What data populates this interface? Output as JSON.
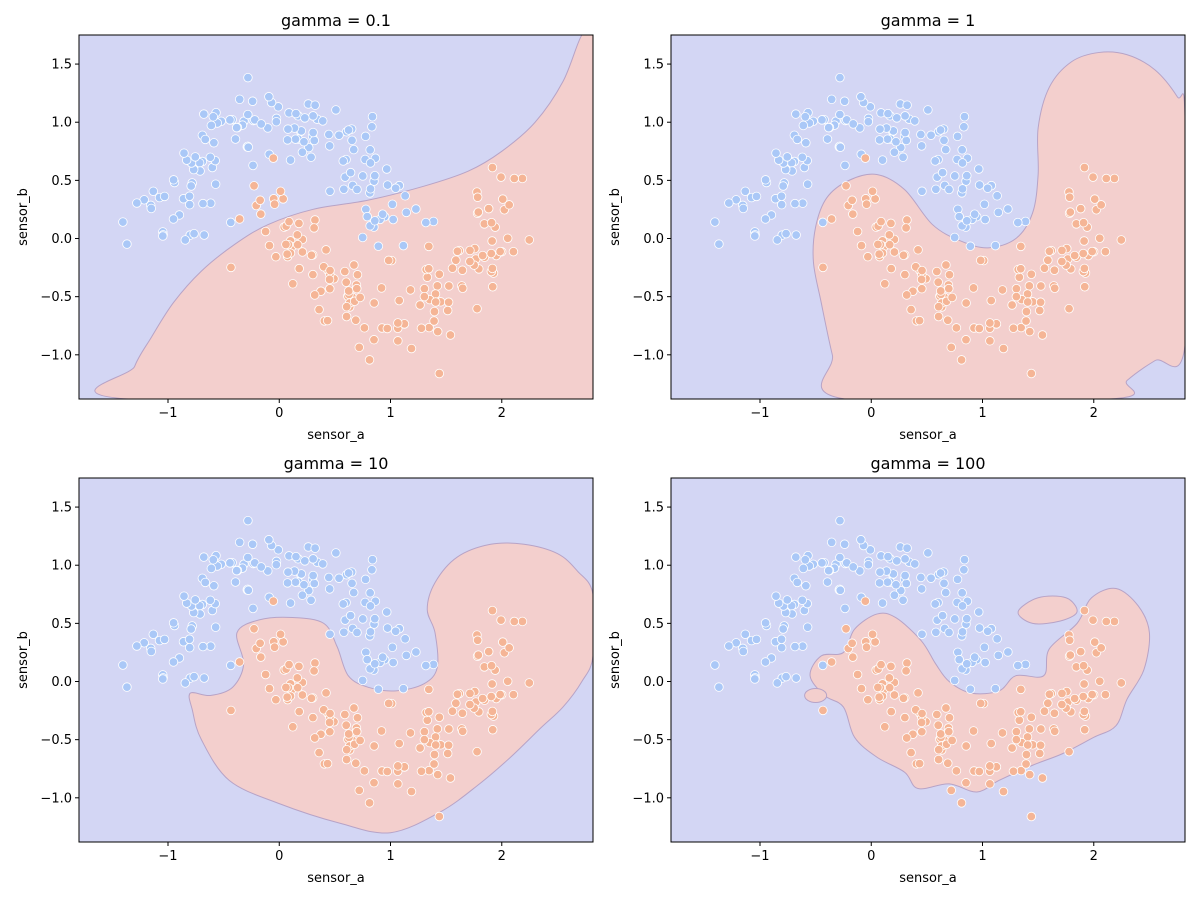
{
  "colors": {
    "region_class_0": "#d3d6f4",
    "region_class_1": "#f3cfcd",
    "boundary": "#b7a3c6",
    "point_class_0": "#aac8f7",
    "point_class_1": "#f5b596",
    "point_edge": "#ffffff",
    "axes_frame": "#000000"
  },
  "chart_data": [
    {
      "type": "scatter",
      "subtype": "decision-boundary",
      "title": "gamma = 0.1",
      "xlabel": "sensor_a",
      "ylabel": "sensor_b",
      "xlim": [
        -1.8,
        2.82
      ],
      "ylim": [
        -1.38,
        1.75
      ],
      "xticks": [
        -1,
        0,
        1,
        2
      ],
      "xtick_labels": [
        "−1",
        "0",
        "1",
        "2"
      ],
      "yticks": [
        -1.0,
        -0.5,
        0.0,
        0.5,
        1.0,
        1.5
      ],
      "ytick_labels": [
        "−1.0",
        "−0.5",
        "0.0",
        "0.5",
        "1.0",
        "1.5"
      ],
      "grid": false,
      "class1_region": [
        [
          -1.36,
          -1.38
        ],
        [
          -1.3,
          -1.1
        ],
        [
          -1.15,
          -0.85
        ],
        [
          -0.95,
          -0.55
        ],
        [
          -0.7,
          -0.28
        ],
        [
          -0.4,
          -0.05
        ],
        [
          -0.1,
          0.12
        ],
        [
          0.3,
          0.25
        ],
        [
          0.8,
          0.33
        ],
        [
          1.3,
          0.45
        ],
        [
          1.7,
          0.58
        ],
        [
          2.0,
          0.75
        ],
        [
          2.3,
          1.0
        ],
        [
          2.55,
          1.35
        ],
        [
          2.72,
          1.75
        ],
        [
          2.82,
          1.75
        ],
        [
          2.82,
          -1.38
        ]
      ],
      "series_class_0_label": "",
      "series_class_1_label": ""
    },
    {
      "type": "scatter",
      "subtype": "decision-boundary",
      "title": "gamma = 1",
      "xlabel": "sensor_a",
      "ylabel": "sensor_b",
      "xlim": [
        -1.8,
        2.82
      ],
      "ylim": [
        -1.38,
        1.75
      ],
      "xticks": [
        -1,
        0,
        1,
        2
      ],
      "xtick_labels": [
        "−1",
        "0",
        "1",
        "2"
      ],
      "yticks": [
        -1.0,
        -0.5,
        0.0,
        0.5,
        1.0,
        1.5
      ],
      "ytick_labels": [
        "−1.0",
        "−0.5",
        "0.0",
        "0.5",
        "1.0",
        "1.5"
      ],
      "grid": false,
      "class1_region": [
        [
          -0.24,
          -1.38
        ],
        [
          -0.35,
          -1.0
        ],
        [
          -0.45,
          -0.55
        ],
        [
          -0.52,
          -0.2
        ],
        [
          -0.5,
          0.1
        ],
        [
          -0.4,
          0.35
        ],
        [
          -0.2,
          0.5
        ],
        [
          0.05,
          0.55
        ],
        [
          0.3,
          0.42
        ],
        [
          0.55,
          0.12
        ],
        [
          0.8,
          -0.02
        ],
        [
          1.05,
          -0.08
        ],
        [
          1.3,
          0.0
        ],
        [
          1.45,
          0.22
        ],
        [
          1.5,
          0.55
        ],
        [
          1.5,
          0.95
        ],
        [
          1.6,
          1.3
        ],
        [
          1.8,
          1.52
        ],
        [
          2.05,
          1.6
        ],
        [
          2.3,
          1.58
        ],
        [
          2.55,
          1.45
        ],
        [
          2.75,
          1.22
        ],
        [
          2.82,
          1.05
        ],
        [
          2.82,
          -0.92
        ],
        [
          2.55,
          -1.05
        ],
        [
          2.3,
          -1.22
        ],
        [
          2.15,
          -1.38
        ]
      ],
      "series_class_0_label": "",
      "series_class_1_label": ""
    },
    {
      "type": "scatter",
      "subtype": "decision-boundary",
      "title": "gamma = 10",
      "xlabel": "sensor_a",
      "ylabel": "sensor_b",
      "xlim": [
        -1.8,
        2.82
      ],
      "ylim": [
        -1.38,
        1.75
      ],
      "xticks": [
        -1,
        0,
        1,
        2
      ],
      "xtick_labels": [
        "−1",
        "0",
        "1",
        "2"
      ],
      "yticks": [
        -1.0,
        -0.5,
        0.0,
        0.5,
        1.0,
        1.5
      ],
      "ytick_labels": [
        "−1.0",
        "−0.5",
        "0.0",
        "0.5",
        "1.0",
        "1.5"
      ],
      "grid": false,
      "class1_region": [
        [
          -0.78,
          -0.25
        ],
        [
          -0.8,
          -0.1
        ],
        [
          -0.62,
          -0.12
        ],
        [
          -0.42,
          -0.05
        ],
        [
          -0.32,
          0.15
        ],
        [
          -0.38,
          0.42
        ],
        [
          -0.18,
          0.53
        ],
        [
          0.12,
          0.55
        ],
        [
          0.4,
          0.5
        ],
        [
          0.52,
          0.3
        ],
        [
          0.62,
          0.05
        ],
        [
          0.8,
          -0.05
        ],
        [
          1.05,
          -0.08
        ],
        [
          1.3,
          -0.02
        ],
        [
          1.42,
          0.12
        ],
        [
          1.4,
          0.42
        ],
        [
          1.33,
          0.62
        ],
        [
          1.4,
          0.85
        ],
        [
          1.6,
          1.07
        ],
        [
          1.9,
          1.18
        ],
        [
          2.2,
          1.18
        ],
        [
          2.5,
          1.1
        ],
        [
          2.68,
          0.95
        ],
        [
          2.82,
          0.75
        ],
        [
          2.82,
          0.22
        ],
        [
          2.72,
          0.0
        ],
        [
          2.55,
          -0.22
        ],
        [
          2.35,
          -0.4
        ],
        [
          2.08,
          -0.65
        ],
        [
          1.8,
          -0.88
        ],
        [
          1.45,
          -1.12
        ],
        [
          1.0,
          -1.3
        ],
        [
          0.55,
          -1.22
        ],
        [
          0.0,
          -1.05
        ],
        [
          -0.45,
          -0.85
        ],
        [
          -0.7,
          -0.5
        ]
      ],
      "series_class_0_label": "",
      "series_class_1_label": ""
    },
    {
      "type": "scatter",
      "subtype": "decision-boundary",
      "title": "gamma = 100",
      "xlabel": "sensor_a",
      "ylabel": "sensor_b",
      "xlim": [
        -1.8,
        2.82
      ],
      "ylim": [
        -1.38,
        1.75
      ],
      "xticks": [
        -1,
        0,
        1,
        2
      ],
      "xtick_labels": [
        "−1",
        "0",
        "1",
        "2"
      ],
      "yticks": [
        -1.0,
        -0.5,
        0.0,
        0.5,
        1.0,
        1.5
      ],
      "ytick_labels": [
        "−1.0",
        "−0.5",
        "0.0",
        "0.5",
        "1.0",
        "1.5"
      ],
      "grid": false,
      "class1_region": [
        [
          -0.55,
          0.05
        ],
        [
          -0.45,
          0.22
        ],
        [
          -0.25,
          0.25
        ],
        [
          -0.15,
          0.45
        ],
        [
          0.05,
          0.58
        ],
        [
          0.22,
          0.55
        ],
        [
          0.45,
          0.35
        ],
        [
          0.58,
          0.15
        ],
        [
          0.7,
          0.0
        ],
        [
          0.9,
          -0.1
        ],
        [
          1.15,
          -0.08
        ],
        [
          1.3,
          0.05
        ],
        [
          1.55,
          0.05
        ],
        [
          1.6,
          0.28
        ],
        [
          1.85,
          0.5
        ],
        [
          1.98,
          0.72
        ],
        [
          2.2,
          0.8
        ],
        [
          2.4,
          0.65
        ],
        [
          2.5,
          0.42
        ],
        [
          2.45,
          0.1
        ],
        [
          2.3,
          -0.15
        ],
        [
          2.2,
          -0.38
        ],
        [
          2.0,
          -0.48
        ],
        [
          1.72,
          -0.62
        ],
        [
          1.45,
          -0.72
        ],
        [
          1.15,
          -0.85
        ],
        [
          0.95,
          -0.95
        ],
        [
          0.7,
          -0.88
        ],
        [
          0.42,
          -0.92
        ],
        [
          0.3,
          -0.78
        ],
        [
          0.05,
          -0.65
        ],
        [
          -0.15,
          -0.48
        ],
        [
          -0.25,
          -0.22
        ],
        [
          -0.42,
          -0.12
        ]
      ],
      "class1_island": [
        [
          1.32,
          0.6
        ],
        [
          1.5,
          0.72
        ],
        [
          1.75,
          0.72
        ],
        [
          1.85,
          0.6
        ],
        [
          1.7,
          0.52
        ],
        [
          1.45,
          0.5
        ]
      ],
      "class1_blob": [
        -0.5,
        -0.12
      ],
      "series_class_0_label": "",
      "series_class_1_label": ""
    }
  ]
}
